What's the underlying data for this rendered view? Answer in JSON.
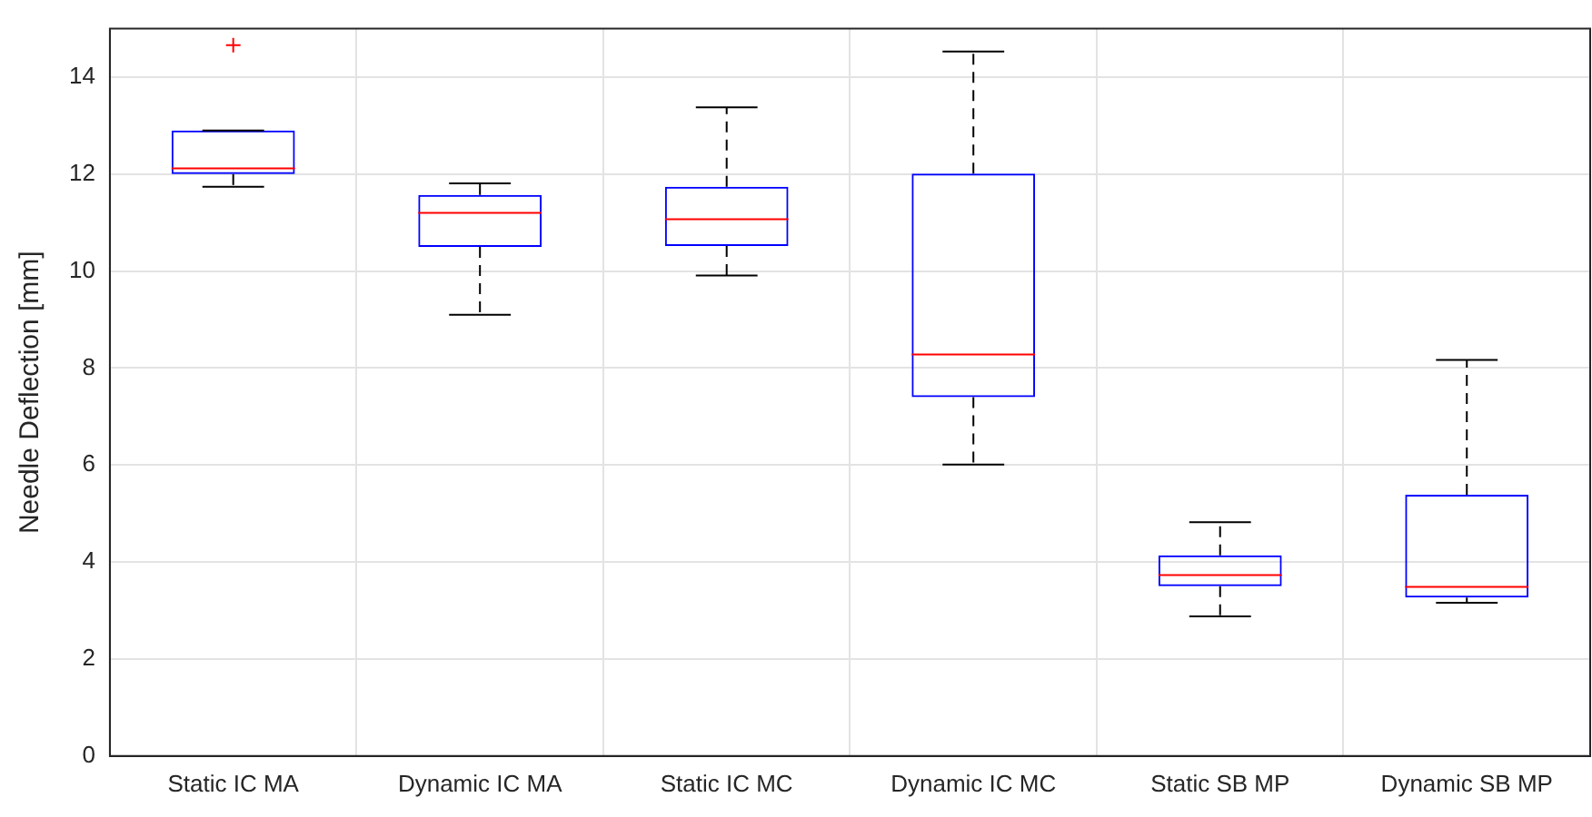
{
  "chart_data": {
    "type": "box",
    "ylabel": "Needle Deflection [mm]",
    "categories": [
      "Static IC MA",
      "Dynamic IC MA",
      "Static IC MC",
      "Dynamic IC MC",
      "Static SB MP",
      "Dynamic SB MP"
    ],
    "color": "#0000ff",
    "boxes": [
      {
        "low": 11.74,
        "q1": 12.0,
        "median": 12.12,
        "q3": 12.9,
        "high": 12.9,
        "outliers": [
          14.66
        ]
      },
      {
        "low": 9.1,
        "q1": 10.5,
        "median": 11.2,
        "q3": 11.57,
        "high": 11.81
      },
      {
        "low": 9.91,
        "q1": 10.52,
        "median": 11.07,
        "q3": 11.74,
        "high": 13.38
      },
      {
        "low": 6.01,
        "q1": 7.4,
        "median": 8.28,
        "q3": 12.01,
        "high": 14.53
      },
      {
        "low": 2.88,
        "q1": 3.5,
        "median": 3.73,
        "q3": 4.14,
        "high": 4.82
      },
      {
        "low": 3.16,
        "q1": 3.27,
        "median": 3.49,
        "q3": 5.39,
        "high": 8.17
      }
    ],
    "ylim": [
      0,
      15
    ],
    "yticks": [
      0,
      2,
      4,
      6,
      8,
      10,
      12,
      14
    ],
    "grid": true,
    "legend": false
  }
}
